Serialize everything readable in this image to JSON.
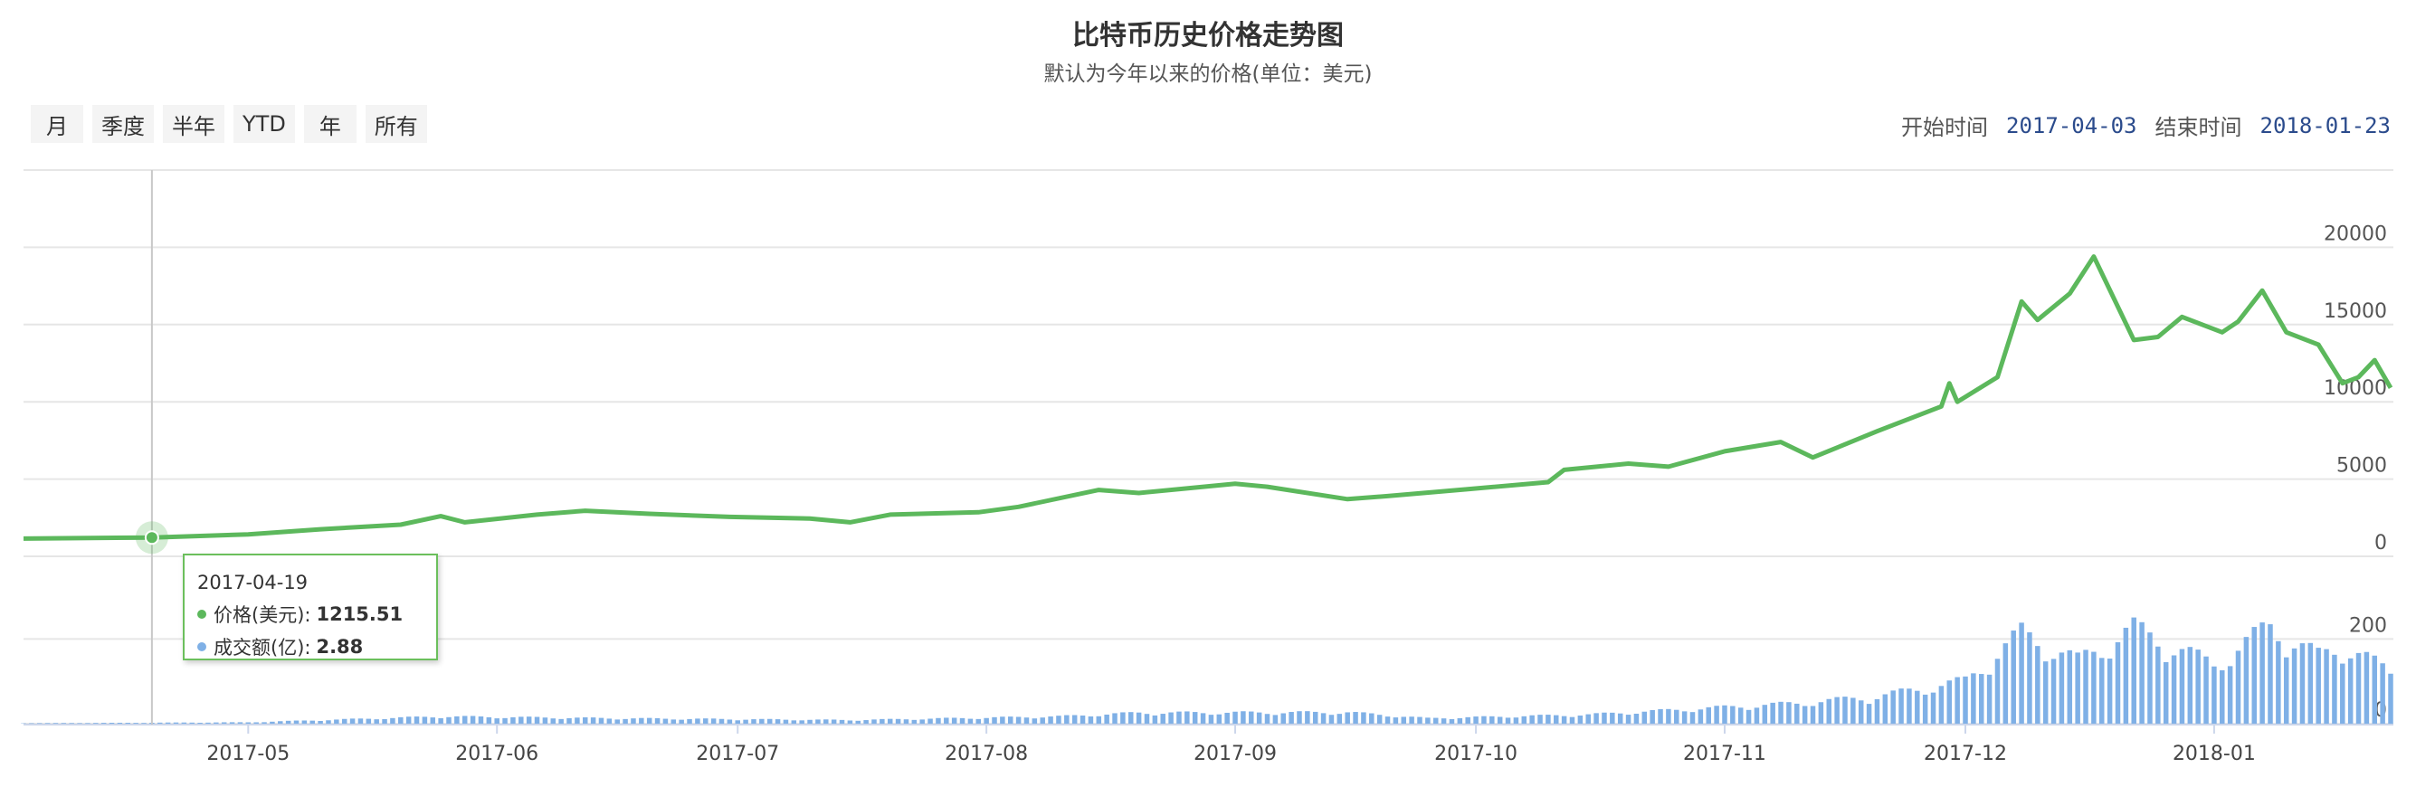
{
  "title": "比特币历史价格走势图",
  "subtitle": "默认为今年以来的价格(单位：美元)",
  "range_buttons": [
    "月",
    "季度",
    "半年",
    "YTD",
    "年",
    "所有"
  ],
  "date_range": {
    "start_label": "开始时间",
    "start_value": "2017-04-03",
    "end_label": "结束时间",
    "end_value": "2018-01-23"
  },
  "tooltip": {
    "date": "2017-04-19",
    "price_label": "价格(美元):",
    "price_value": "1215.51",
    "volume_label": "成交额(亿):",
    "volume_value": "2.88"
  },
  "colors": {
    "price": "#5cb85c",
    "volume": "#7fb0e6",
    "link": "#2b4b8c"
  },
  "chart_data": {
    "type": "line",
    "x_start": "2017-04-03",
    "x_end": "2018-01-23",
    "x_ticks": [
      "2017-05",
      "2017-06",
      "2017-07",
      "2017-08",
      "2017-09",
      "2017-10",
      "2017-11",
      "2017-12",
      "2018-01"
    ],
    "price_axis": {
      "ticks": [
        0,
        5000,
        10000,
        15000,
        20000
      ],
      "range": [
        0,
        25000
      ]
    },
    "volume_axis": {
      "ticks": [
        0,
        200
      ],
      "range": [
        0,
        250
      ]
    },
    "price_series": {
      "name": "价格(美元)",
      "points": [
        [
          "2017-04-03",
          1150
        ],
        [
          "2017-04-19",
          1215.51
        ],
        [
          "2017-05-01",
          1420
        ],
        [
          "2017-05-10",
          1750
        ],
        [
          "2017-05-20",
          2050
        ],
        [
          "2017-05-25",
          2600
        ],
        [
          "2017-05-28",
          2200
        ],
        [
          "2017-06-06",
          2700
        ],
        [
          "2017-06-12",
          2950
        ],
        [
          "2017-06-20",
          2750
        ],
        [
          "2017-06-30",
          2550
        ],
        [
          "2017-07-10",
          2450
        ],
        [
          "2017-07-15",
          2200
        ],
        [
          "2017-07-20",
          2700
        ],
        [
          "2017-07-31",
          2850
        ],
        [
          "2017-08-05",
          3200
        ],
        [
          "2017-08-15",
          4300
        ],
        [
          "2017-08-20",
          4100
        ],
        [
          "2017-09-01",
          4700
        ],
        [
          "2017-09-05",
          4500
        ],
        [
          "2017-09-15",
          3700
        ],
        [
          "2017-09-20",
          3900
        ],
        [
          "2017-09-30",
          4350
        ],
        [
          "2017-10-10",
          4800
        ],
        [
          "2017-10-12",
          5600
        ],
        [
          "2017-10-20",
          6000
        ],
        [
          "2017-10-25",
          5800
        ],
        [
          "2017-11-01",
          6800
        ],
        [
          "2017-11-08",
          7400
        ],
        [
          "2017-11-12",
          6400
        ],
        [
          "2017-11-20",
          8100
        ],
        [
          "2017-11-28",
          9700
        ],
        [
          "2017-11-29",
          11200
        ],
        [
          "2017-11-30",
          10000
        ],
        [
          "2017-12-05",
          11600
        ],
        [
          "2017-12-08",
          16500
        ],
        [
          "2017-12-10",
          15300
        ],
        [
          "2017-12-14",
          17000
        ],
        [
          "2017-12-17",
          19400
        ],
        [
          "2017-12-22",
          14000
        ],
        [
          "2017-12-25",
          14200
        ],
        [
          "2017-12-28",
          15500
        ],
        [
          "2018-01-02",
          14500
        ],
        [
          "2018-01-04",
          15200
        ],
        [
          "2018-01-07",
          17200
        ],
        [
          "2018-01-10",
          14500
        ],
        [
          "2018-01-14",
          13700
        ],
        [
          "2018-01-17",
          11200
        ],
        [
          "2018-01-19",
          11600
        ],
        [
          "2018-01-21",
          12700
        ],
        [
          "2018-01-23",
          10900
        ]
      ]
    },
    "volume_series": {
      "name": "成交额(亿)",
      "points": [
        [
          "2017-04-03",
          1
        ],
        [
          "2017-05-01",
          3
        ],
        [
          "2017-05-25",
          16
        ],
        [
          "2017-06-15",
          12
        ],
        [
          "2017-07-15",
          8
        ],
        [
          "2017-08-10",
          16
        ],
        [
          "2017-08-20",
          24
        ],
        [
          "2017-09-15",
          25
        ],
        [
          "2017-09-25",
          12
        ],
        [
          "2017-10-15",
          20
        ],
        [
          "2017-11-10",
          45
        ],
        [
          "2017-11-20",
          60
        ],
        [
          "2017-11-28",
          85
        ],
        [
          "2017-12-01",
          95
        ],
        [
          "2017-12-08",
          200
        ],
        [
          "2017-12-15",
          140
        ],
        [
          "2017-12-22",
          210
        ],
        [
          "2018-01-01",
          130
        ],
        [
          "2018-01-08",
          215
        ],
        [
          "2018-01-14",
          150
        ],
        [
          "2018-01-18",
          170
        ],
        [
          "2018-01-23",
          110
        ]
      ]
    }
  }
}
